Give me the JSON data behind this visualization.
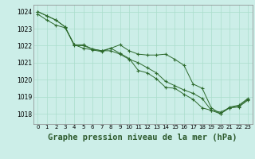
{
  "title": "Graphe pression niveau de la mer (hPa)",
  "background_color": "#cceee8",
  "grid_color": "#aaddcc",
  "line_color": "#2d6a2d",
  "marker_color": "#2d6a2d",
  "xlim": [
    -0.5,
    23.5
  ],
  "ylim": [
    1017.4,
    1024.4
  ],
  "yticks": [
    1018,
    1019,
    1020,
    1021,
    1022,
    1023,
    1024
  ],
  "xticks": [
    0,
    1,
    2,
    3,
    4,
    5,
    6,
    7,
    8,
    9,
    10,
    11,
    12,
    13,
    14,
    15,
    16,
    17,
    18,
    19,
    20,
    21,
    22,
    23
  ],
  "line1": [
    1024.0,
    1023.75,
    1023.5,
    1023.1,
    1022.0,
    1022.0,
    1021.8,
    1021.7,
    1021.7,
    1021.5,
    1021.2,
    1021.0,
    1020.7,
    1020.4,
    1019.9,
    1019.65,
    1019.4,
    1019.2,
    1018.9,
    1018.2,
    1018.0,
    1018.35,
    1018.4,
    1018.8
  ],
  "line2": [
    1023.85,
    1023.5,
    1023.2,
    1023.05,
    1022.05,
    1021.85,
    1021.75,
    1021.65,
    1021.85,
    1021.55,
    1021.25,
    1020.55,
    1020.4,
    1020.05,
    1019.55,
    1019.5,
    1019.15,
    1018.85,
    1018.35,
    1018.2,
    1018.1,
    1018.35,
    1018.45,
    1018.85
  ],
  "line3": [
    1024.0,
    1023.75,
    1023.5,
    1023.1,
    1022.05,
    1022.05,
    1021.8,
    1021.7,
    1021.85,
    1022.05,
    1021.7,
    1021.5,
    1021.45,
    1021.45,
    1021.5,
    1021.2,
    1020.85,
    1019.75,
    1019.5,
    1018.35,
    1018.0,
    1018.4,
    1018.5,
    1018.9
  ],
  "title_fontsize": 7.5
}
